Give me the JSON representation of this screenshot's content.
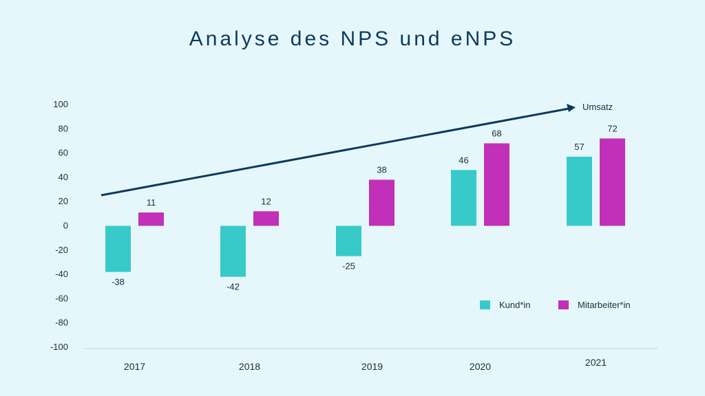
{
  "chart_data": {
    "type": "bar",
    "title": "Analyse des NPS und eNPS",
    "categories": [
      "2017",
      "2018",
      "2019",
      "2020",
      "2021"
    ],
    "series": [
      {
        "name": "Kund*in",
        "values": [
          -38,
          -42,
          -25,
          46,
          57
        ],
        "color": "#38c9c9"
      },
      {
        "name": "Mitarbeiter*in",
        "values": [
          11,
          12,
          38,
          68,
          72
        ],
        "color": "#c22fb8"
      }
    ],
    "y_ticks": [
      "100",
      "80",
      "60",
      "40",
      "20",
      "0",
      "-20",
      "-40",
      "-60",
      "-80",
      "-100"
    ],
    "ylim": [
      -100,
      100
    ],
    "grid": false,
    "legend_position": "bottom-right",
    "annotation": {
      "label": "Umsatz",
      "arrow_color": "#0c3a5a"
    }
  }
}
